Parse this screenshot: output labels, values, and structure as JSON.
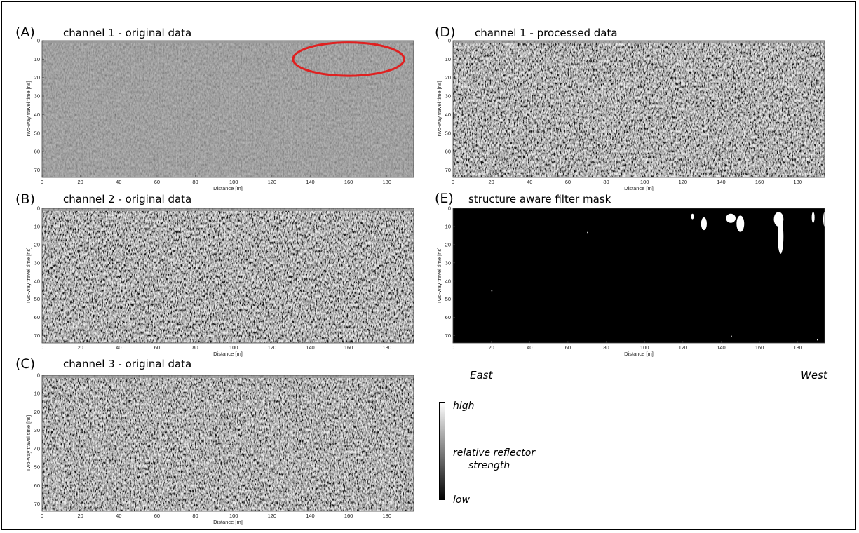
{
  "chart_data": [
    {
      "type": "heatmap",
      "panel": "(A)",
      "title": "channel 1 - original data",
      "xlabel": "Distance [m]",
      "ylabel": "Two-way travel time [ns]",
      "xlim": [
        0,
        194
      ],
      "ylim": [
        0,
        74
      ],
      "xticks": [
        0,
        20,
        40,
        60,
        80,
        100,
        120,
        140,
        160,
        180
      ],
      "yticks": [
        0,
        10,
        20,
        30,
        40,
        50,
        60,
        70
      ],
      "style": "low-contrast gray noise",
      "annotation": {
        "shape": "ellipse",
        "color": "#e02020",
        "x_center": 160,
        "y_center": 10,
        "x_radius": 29,
        "y_radius": 9
      }
    },
    {
      "type": "heatmap",
      "panel": "(B)",
      "title": "channel 2 - original data",
      "xlabel": "Distance [m]",
      "ylabel": "Two-way travel time [ns]",
      "xlim": [
        0,
        194
      ],
      "ylim": [
        0,
        74
      ],
      "xticks": [
        0,
        20,
        40,
        60,
        80,
        100,
        120,
        140,
        160,
        180
      ],
      "yticks": [
        0,
        10,
        20,
        30,
        40,
        50,
        60,
        70
      ],
      "style": "high-contrast gray noise"
    },
    {
      "type": "heatmap",
      "panel": "(C)",
      "title": "channel 3 - original data",
      "xlabel": "Distance [m]",
      "ylabel": "Two-way travel time [ns]",
      "xlim": [
        0,
        194
      ],
      "ylim": [
        0,
        74
      ],
      "xticks": [
        0,
        20,
        40,
        60,
        80,
        100,
        120,
        140,
        160,
        180
      ],
      "yticks": [
        0,
        10,
        20,
        30,
        40,
        50,
        60,
        70
      ],
      "style": "high-contrast gray noise"
    },
    {
      "type": "heatmap",
      "panel": "(D)",
      "title": "channel 1 - processed data",
      "xlabel": "Distance [m]",
      "ylabel": "Two-way travel time [ns]",
      "xlim": [
        0,
        194
      ],
      "ylim": [
        0,
        74
      ],
      "xticks": [
        0,
        20,
        40,
        60,
        80,
        100,
        120,
        140,
        160,
        180
      ],
      "yticks": [
        0,
        10,
        20,
        30,
        40,
        50,
        60,
        70
      ],
      "style": "high-contrast gray noise"
    },
    {
      "type": "heatmap",
      "panel": "(E)",
      "title": "structure aware filter mask",
      "xlabel": "Distance [m]",
      "ylabel": "Two-way travel time [ns]",
      "xlim": [
        0,
        194
      ],
      "ylim": [
        0,
        74
      ],
      "xticks": [
        0,
        20,
        40,
        60,
        80,
        100,
        120,
        140,
        160,
        180
      ],
      "yticks": [
        0,
        10,
        20,
        30,
        40,
        50,
        60,
        70
      ],
      "style": "binary mask (black background, white anomalies)",
      "bright_regions": [
        {
          "x": 125,
          "y": 3,
          "w": 1.5,
          "h": 3
        },
        {
          "x": 131,
          "y": 5,
          "w": 3,
          "h": 7
        },
        {
          "x": 145,
          "y": 3,
          "w": 5,
          "h": 5
        },
        {
          "x": 150,
          "y": 4,
          "w": 4,
          "h": 9
        },
        {
          "x": 170,
          "y": 2,
          "w": 5,
          "h": 8
        },
        {
          "x": 171,
          "y": 6,
          "w": 3,
          "h": 19
        },
        {
          "x": 188,
          "y": 2,
          "w": 1.5,
          "h": 6
        },
        {
          "x": 194,
          "y": 2,
          "w": 1.5,
          "h": 8
        }
      ]
    }
  ],
  "labels": {
    "east": "East",
    "west": "West"
  },
  "colorbar": {
    "high": "high",
    "low": "low",
    "label_line1": "relative reflector",
    "label_line2": "strength"
  }
}
